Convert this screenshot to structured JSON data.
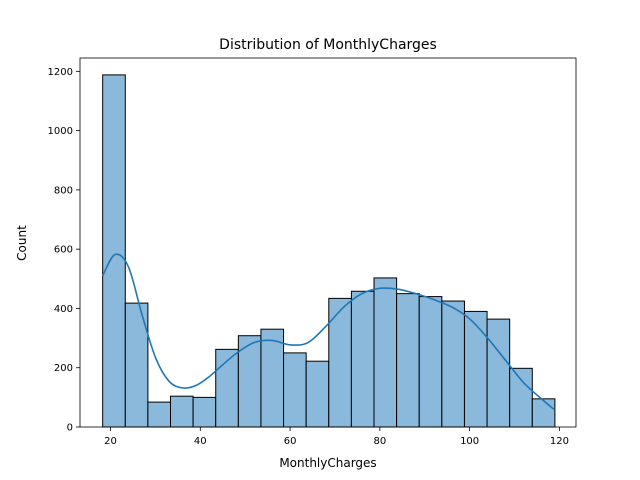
{
  "chart_data": {
    "type": "bar",
    "subtype": "histogram",
    "title": "Distribution of MonthlyCharges",
    "xlabel": "MonthlyCharges",
    "ylabel": "Count",
    "xlim": [
      13.2,
      123.7
    ],
    "ylim": [
      0,
      1245
    ],
    "xticks": [
      20,
      40,
      60,
      80,
      100,
      120
    ],
    "yticks": [
      0,
      200,
      400,
      600,
      800,
      1000,
      1200
    ],
    "grid": false,
    "legend": "none",
    "bin_start": 18.25,
    "bin_width": 5.0375,
    "values": [
      1188,
      418,
      84,
      104,
      100,
      262,
      308,
      330,
      250,
      222,
      434,
      458,
      503,
      450,
      440,
      425,
      390,
      364,
      198,
      95
    ],
    "kde": {
      "x": [
        18.25,
        21,
        24,
        27,
        30,
        33,
        36,
        39,
        42,
        45,
        48,
        52,
        56,
        60,
        64,
        68,
        72,
        76,
        80,
        84,
        88,
        92,
        96,
        100,
        104,
        108,
        112,
        116,
        118.75
      ],
      "y": [
        510,
        582,
        540,
        380,
        235,
        155,
        132,
        140,
        170,
        210,
        248,
        285,
        292,
        277,
        285,
        340,
        405,
        450,
        468,
        465,
        450,
        430,
        405,
        365,
        300,
        225,
        150,
        95,
        60
      ]
    },
    "colors": {
      "bar_fill": "#8ab9db",
      "bar_edge": "#000000",
      "kde_line": "#1f77b4"
    }
  }
}
